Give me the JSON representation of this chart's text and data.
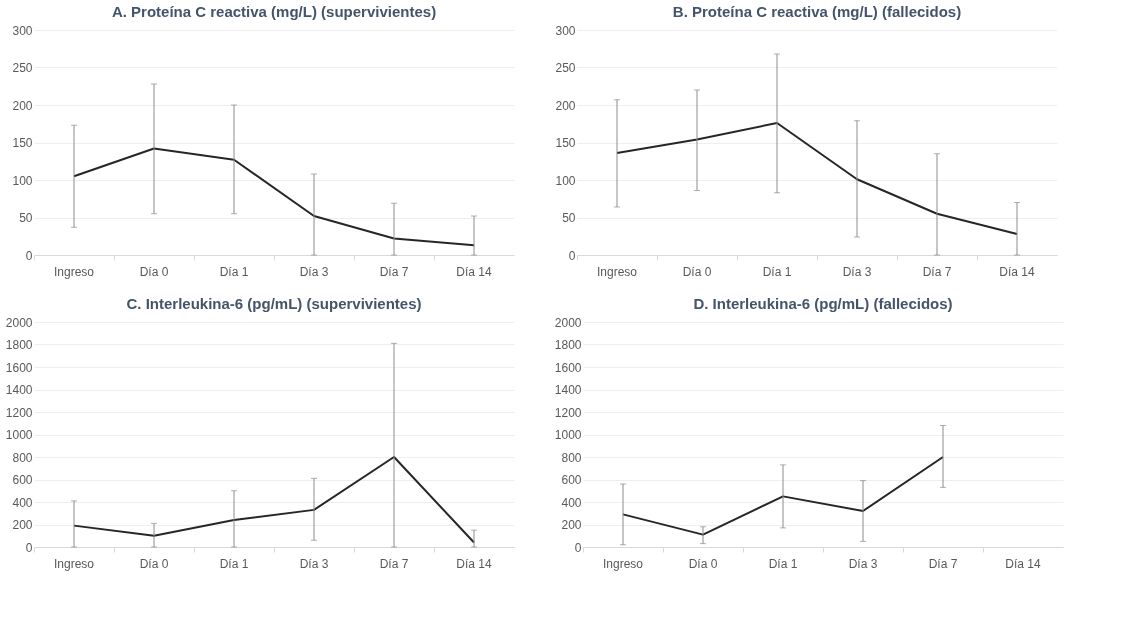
{
  "chart_data": [
    {
      "type": "line",
      "title": "A. Proteína C reactiva (mg/L) (supervivientes)",
      "categories": [
        "Ingreso",
        "Día 0",
        "Día 1",
        "Día 3",
        "Día 7",
        "Día 14"
      ],
      "series": [
        {
          "color": "#262626",
          "values": [
            105,
            142,
            127,
            52,
            22,
            13
          ],
          "errors": [
            [
              37,
              173
            ],
            [
              55,
              228
            ],
            [
              55,
              200
            ],
            [
              0,
              108
            ],
            [
              0,
              69
            ],
            [
              0,
              52
            ]
          ]
        }
      ],
      "ylim": [
        0,
        300
      ],
      "yticks": [
        0,
        50,
        100,
        150,
        200,
        250,
        300
      ],
      "grid": "y",
      "legend": false,
      "marker": "none"
    },
    {
      "type": "line",
      "title": "B. Proteína C reactiva (mg/L) (fallecidos)",
      "categories": [
        "Ingreso",
        "Día 0",
        "Día 1",
        "Día 3",
        "Día 7",
        "Día 14"
      ],
      "series": [
        {
          "color": "#262626",
          "values": [
            136,
            154,
            176,
            101,
            55,
            28
          ],
          "errors": [
            [
              64,
              207
            ],
            [
              86,
              220
            ],
            [
              83,
              268
            ],
            [
              24,
              179
            ],
            [
              0,
              135
            ],
            [
              0,
              70
            ]
          ]
        }
      ],
      "ylim": [
        0,
        300
      ],
      "yticks": [
        0,
        50,
        100,
        150,
        200,
        250,
        300
      ],
      "grid": "y",
      "legend": false,
      "marker": "none"
    },
    {
      "type": "line",
      "title": "C. Interleukina-6 (pg/mL) (supervivientes)",
      "categories": [
        "Ingreso",
        "Día 0",
        "Día 1",
        "Día 3",
        "Día 7",
        "Día 14"
      ],
      "series": [
        {
          "color": "#262626",
          "values": [
            190,
            100,
            240,
            330,
            800,
            40
          ],
          "errors": [
            [
              0,
              410
            ],
            [
              0,
              210
            ],
            [
              0,
              500
            ],
            [
              60,
              610
            ],
            [
              0,
              1810
            ],
            [
              0,
              150
            ]
          ]
        }
      ],
      "ylim": [
        0,
        2000
      ],
      "yticks": [
        0,
        200,
        400,
        600,
        800,
        1000,
        1200,
        1400,
        1600,
        1800,
        2000
      ],
      "grid": "y",
      "legend": false,
      "marker": "none"
    },
    {
      "type": "line",
      "title": "D. Interleukina-6 (pg/mL) (fallecidos)",
      "categories": [
        "Ingreso",
        "Día 0",
        "Día 1",
        "Día 3",
        "Día 7",
        "Día 14"
      ],
      "series": [
        {
          "color": "#262626",
          "values": [
            290,
            110,
            450,
            320,
            800,
            null
          ],
          "errors": [
            [
              20,
              560
            ],
            [
              30,
              180
            ],
            [
              170,
              730
            ],
            [
              50,
              590
            ],
            [
              530,
              1080
            ],
            null
          ]
        }
      ],
      "ylim": [
        0,
        2000
      ],
      "yticks": [
        0,
        200,
        400,
        600,
        800,
        1000,
        1200,
        1400,
        1600,
        1800,
        2000
      ],
      "grid": "y",
      "legend": false,
      "marker": "none"
    }
  ]
}
